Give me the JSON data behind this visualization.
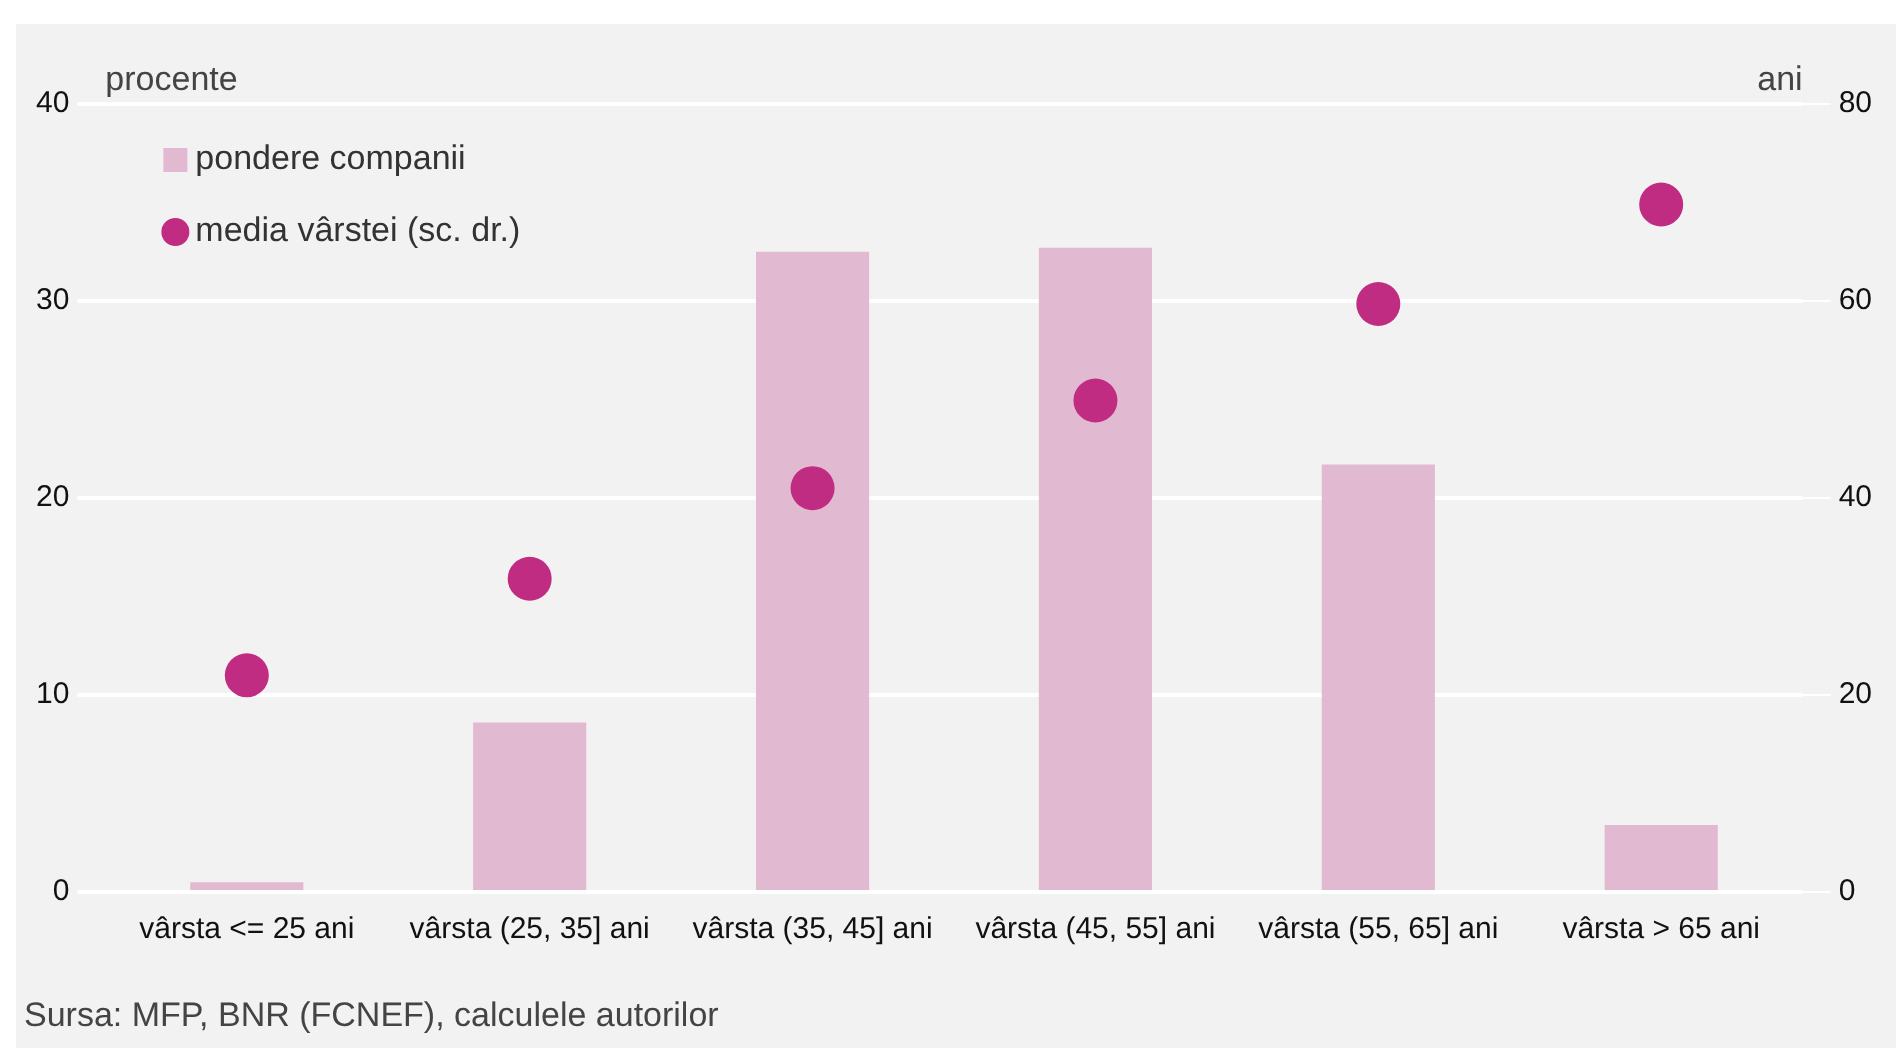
{
  "chart_data": {
    "type": "bar",
    "categories": [
      "vârsta <= 25 ani",
      "vârsta (25, 35] ani",
      "vârsta (35, 45] ani",
      "vârsta (45, 55] ani",
      "vârsta (55, 65] ani",
      "vârsta > 65 ani"
    ],
    "ylabel": "procente",
    "y2label": "ani",
    "series": [
      {
        "name": "pondere companii",
        "color": "#e1b9d0",
        "values": [
          0.5,
          8.6,
          32.5,
          32.7,
          21.7,
          3.4
        ]
      },
      {
        "name": "media vârstei (sc. dr.)",
        "type": "scatter",
        "axis": "y2",
        "color": "#c12c83",
        "values": [
          22,
          31.8,
          41,
          49.9,
          59.7,
          69.8
        ]
      }
    ],
    "ylim": [
      0,
      40
    ],
    "yticks": [
      0,
      10,
      20,
      30,
      40
    ],
    "y2lim": [
      0,
      80
    ],
    "y2ticks": [
      0,
      20,
      40,
      60,
      80
    ],
    "grid": "y",
    "legend": "top left",
    "marker": "circle",
    "annotations": [
      "Sursa: MFP, BNR (FCNEF), calculele autorilor"
    ]
  }
}
